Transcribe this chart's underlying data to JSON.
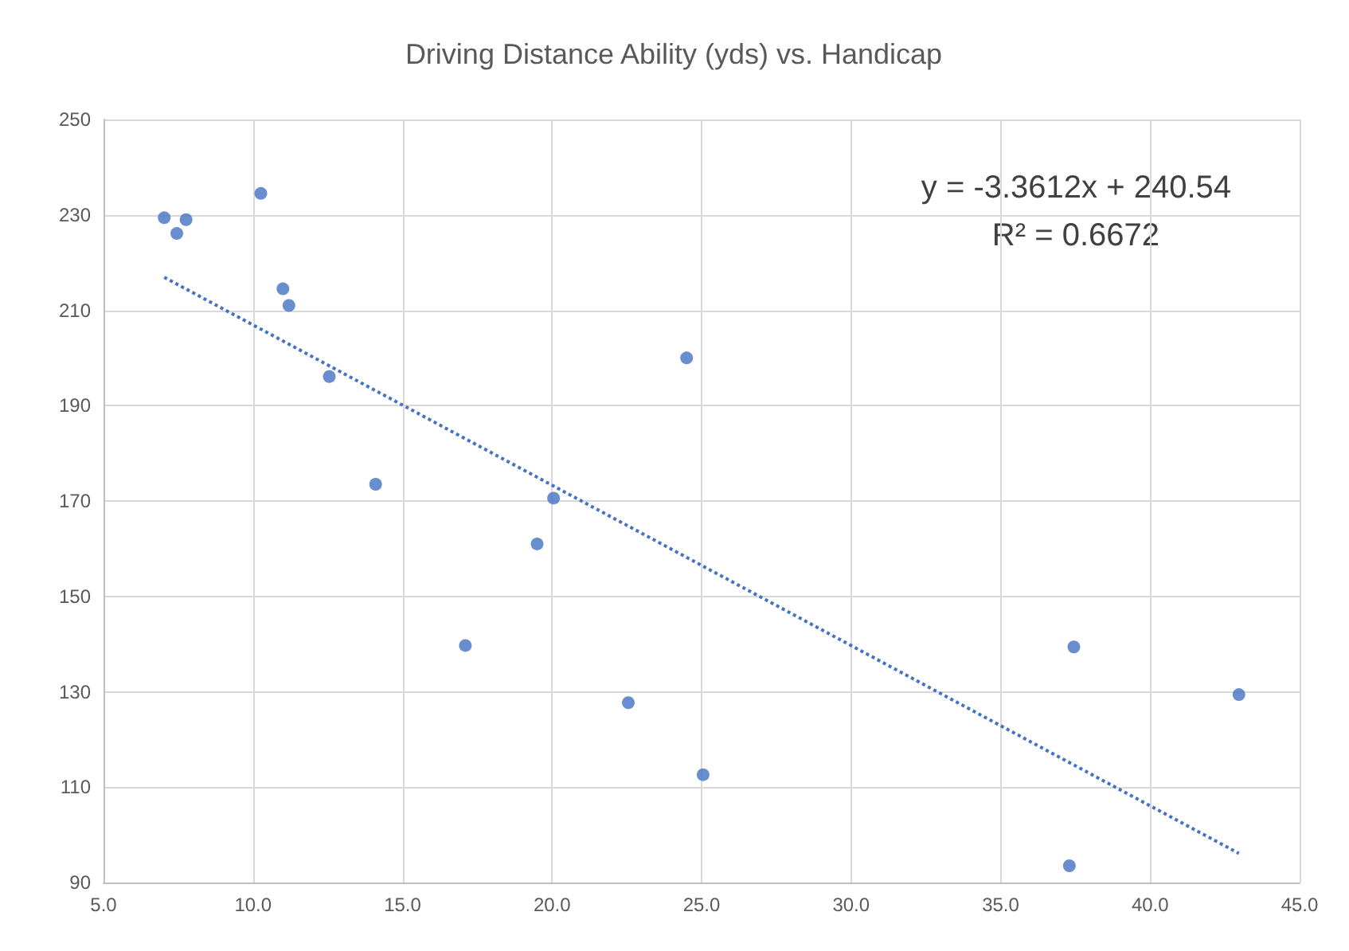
{
  "chart_data": {
    "type": "scatter",
    "title": "Driving Distance Ability (yds) vs. Handicap",
    "series": [
      {
        "color": "#4472c4",
        "marker": "circle",
        "x": [
          7.03,
          7.45,
          7.76,
          10.26,
          11.0,
          11.2,
          12.55,
          14.1,
          17.1,
          19.5,
          20.05,
          22.55,
          24.5,
          25.05,
          37.3,
          37.45,
          42.97
        ],
        "values": [
          229.4,
          226.1,
          229.0,
          234.5,
          214.5,
          211.0,
          196.1,
          173.5,
          139.7,
          161.0,
          170.6,
          127.7,
          200.0,
          112.6,
          93.5,
          139.4,
          129.4
        ]
      },
      {
        "type": "line",
        "color": "#4472c4",
        "line_style": "dotted",
        "marker": "none",
        "x": [
          7.03,
          42.97
        ],
        "values": [
          216.9,
          96.1
        ]
      }
    ],
    "annotations": [
      "y = -3.3612x + 240.54",
      "R² = 0.6672"
    ],
    "xlim": [
      5,
      45
    ],
    "xticks": [
      {
        "value": 5,
        "label": "5.0"
      },
      {
        "value": 10,
        "label": "10.0"
      },
      {
        "value": 15,
        "label": "15.0"
      },
      {
        "value": 20,
        "label": "20.0"
      },
      {
        "value": 25,
        "label": "25.0"
      },
      {
        "value": 30,
        "label": "30.0"
      },
      {
        "value": 35,
        "label": "35.0"
      },
      {
        "value": 40,
        "label": "40.0"
      },
      {
        "value": 45,
        "label": "45.0"
      }
    ],
    "ylim": [
      90,
      250
    ],
    "yticks": [
      90,
      110,
      130,
      150,
      170,
      190,
      210,
      230,
      250
    ],
    "grid": true
  }
}
